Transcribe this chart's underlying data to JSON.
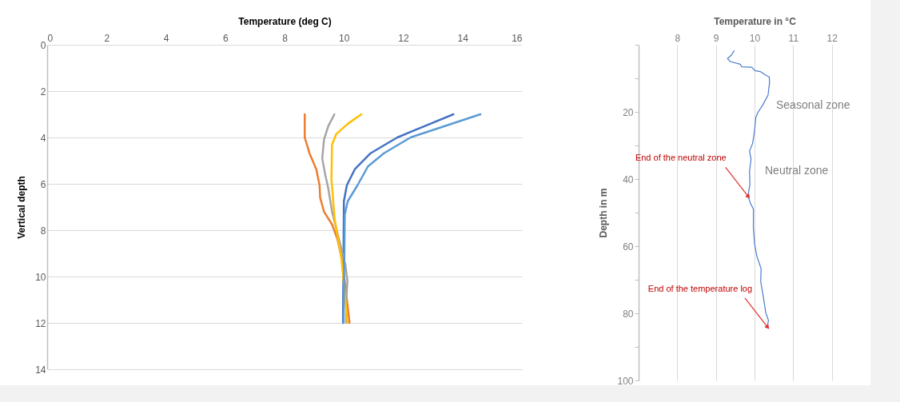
{
  "chart_data": [
    {
      "type": "line",
      "xlabel": "Temperature (deg C)",
      "ylabel": "Vertical depth",
      "xlim": [
        0,
        16
      ],
      "xticks": [
        0,
        2,
        4,
        6,
        8,
        10,
        12,
        14,
        16
      ],
      "ylim": [
        14,
        0
      ],
      "yticks": [
        0,
        2,
        4,
        6,
        8,
        10,
        12,
        14
      ],
      "grid": "y",
      "series": [
        {
          "color": "#4472c4",
          "x": [
            13.69,
            12.7,
            11.8,
            10.9,
            10.37,
            10.1,
            10.0,
            9.97
          ],
          "values": [
            3.0,
            3.52,
            4.0,
            4.68,
            5.37,
            6.06,
            6.75,
            12.0
          ]
        },
        {
          "color": "#ed7d31",
          "x": [
            8.68,
            8.68,
            8.84,
            9.07,
            9.18,
            9.2,
            9.33,
            9.6,
            9.78,
            9.93,
            10.05,
            10.19
          ],
          "values": [
            3.0,
            4.0,
            4.68,
            5.37,
            6.06,
            6.6,
            7.2,
            7.75,
            8.37,
            9.25,
            10.4,
            12.0
          ]
        },
        {
          "color": "#a5a5a5",
          "x": [
            9.68,
            9.47,
            9.33,
            9.27,
            9.37,
            9.47,
            9.6,
            9.83,
            10.05,
            10.12,
            10.08,
            10.08
          ],
          "values": [
            3.0,
            3.52,
            4.09,
            4.9,
            5.6,
            6.17,
            7.2,
            8.37,
            9.5,
            10.2,
            11.0,
            12.0
          ]
        },
        {
          "color": "#ffc000",
          "x": [
            10.59,
            10.14,
            9.74,
            9.6,
            9.58,
            9.69,
            9.92,
            10.12
          ],
          "values": [
            3.0,
            3.4,
            3.86,
            4.31,
            5.8,
            7.53,
            9.25,
            12.0
          ]
        },
        {
          "color": "#5b9bd5",
          "x": [
            14.6,
            12.26,
            11.35,
            10.81,
            10.46,
            10.13,
            10.03,
            9.99
          ],
          "values": [
            3.0,
            3.99,
            4.68,
            5.25,
            6.06,
            6.75,
            7.33,
            12.0
          ]
        }
      ]
    },
    {
      "type": "line",
      "xlabel": "Temperature in °C",
      "ylabel": "Depth in m",
      "xlim": [
        7,
        13
      ],
      "xticks": [
        8,
        9,
        10,
        11,
        12
      ],
      "ylim": [
        100,
        0
      ],
      "yticks": [
        {
          "value": 0,
          "label": null
        },
        {
          "value": 10,
          "label": null
        },
        20,
        {
          "value": 30,
          "label": null
        },
        40,
        {
          "value": 50,
          "label": null
        },
        60,
        {
          "value": 70,
          "label": null
        },
        80,
        {
          "value": 90,
          "label": null
        },
        100
      ],
      "grid": "x",
      "series": [
        {
          "color": "#4a7bd0",
          "x": [
            9.47,
            9.4,
            9.3,
            9.37,
            9.63,
            9.67,
            9.93,
            10.01,
            10.15,
            10.28,
            10.38,
            10.39,
            10.35,
            10.21,
            10.08,
            10.03,
            10.0,
            9.95,
            9.87,
            9.91,
            9.87,
            9.88,
            9.83,
            9.9,
            9.97,
            9.97,
            10.0,
            10.06,
            10.15,
            10.17,
            10.16,
            10.23,
            10.29,
            10.36,
            10.33
          ],
          "values": [
            1.8,
            3.1,
            4.1,
            5.0,
            5.8,
            6.6,
            6.7,
            7.7,
            8.0,
            9.0,
            9.6,
            11.1,
            15.0,
            18.0,
            20.3,
            21.8,
            25.6,
            29.4,
            31.7,
            34.0,
            37.8,
            41.6,
            45.1,
            47.4,
            48.9,
            54.6,
            59.2,
            63.0,
            66.0,
            66.8,
            70.6,
            75.2,
            79.8,
            82.1,
            84.0
          ]
        }
      ],
      "annotations": [
        "Seasonal zone",
        "Neutral zone",
        {
          "text": "End of the neutral zone",
          "x": 9.83,
          "y": 45.1
        },
        {
          "text": "End of the temperature log",
          "x": 10.33,
          "y": 84.0
        }
      ]
    }
  ]
}
